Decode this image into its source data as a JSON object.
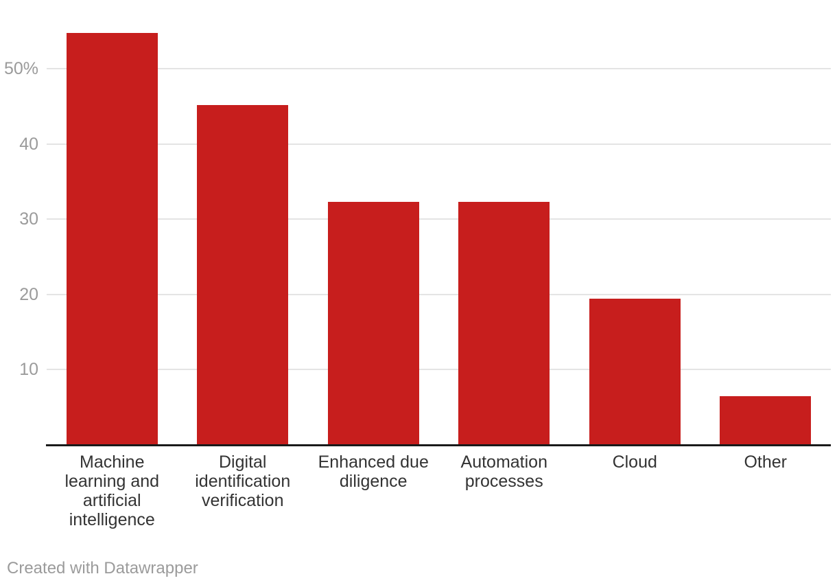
{
  "chart_data": {
    "type": "bar",
    "title": "",
    "xlabel": "",
    "ylabel": "",
    "categories": [
      "Machine learning and artificial intelligence",
      "Digital identification verification",
      "Enhanced due diligence",
      "Automation processes",
      "Cloud",
      "Other"
    ],
    "category_label_lines": [
      [
        "Machine",
        "learning and",
        "artificial",
        "intelligence"
      ],
      [
        "Digital",
        "identification",
        "verification"
      ],
      [
        "Enhanced due",
        "diligence"
      ],
      [
        "Automation",
        "processes"
      ],
      [
        "Cloud"
      ],
      [
        "Other"
      ]
    ],
    "values": [
      54.8,
      45.2,
      32.3,
      32.3,
      19.4,
      6.5
    ],
    "unit": "%",
    "ylim": [
      0,
      59.15
    ],
    "yticks": [
      {
        "value": 10,
        "label": "10"
      },
      {
        "value": 20,
        "label": "20"
      },
      {
        "value": 30,
        "label": "30"
      },
      {
        "value": 40,
        "label": "40"
      },
      {
        "value": 50,
        "label": "50%"
      }
    ],
    "grid": true,
    "legend": "none",
    "bar_color": "#c71e1d",
    "gridline_color": "#e4e4e4",
    "axis_line_color": "#1a1a1a",
    "tick_label_color": "#9b9b9b",
    "category_label_color": "#333333"
  },
  "footer": {
    "credit": "Created with Datawrapper"
  }
}
